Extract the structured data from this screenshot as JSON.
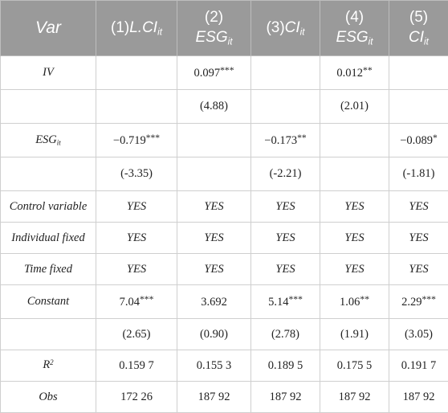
{
  "header": {
    "var": "Var",
    "col1": {
      "num": "(1)",
      "main": "L.CI",
      "sub": "it"
    },
    "col2": {
      "num": "(2)",
      "main": "ESG",
      "sub": "it"
    },
    "col3": {
      "num": "(3)",
      "main": "CI",
      "sub": "it"
    },
    "col4": {
      "num": "(4)",
      "main": "ESG",
      "sub": "it"
    },
    "col5": {
      "num": "(5)",
      "main": "CI",
      "sub": "it"
    }
  },
  "rows": {
    "iv": {
      "label": "IV",
      "c1": "",
      "c2": "0.097",
      "c2_stars": "***",
      "c3": "",
      "c4": "0.012",
      "c4_stars": "**",
      "c5": ""
    },
    "iv_t": {
      "c1": "",
      "c2": "(4.88)",
      "c3": "",
      "c4": "(2.01)",
      "c5": ""
    },
    "esg": {
      "label_main": "ESG",
      "label_sub": "it",
      "c1": "−0.719",
      "c1_stars": "***",
      "c2": "",
      "c3": "−0.173",
      "c3_stars": "**",
      "c4": "",
      "c5": "−0.089",
      "c5_stars": "*"
    },
    "esg_t": {
      "c1": "(-3.35)",
      "c2": "",
      "c3": "(-2.21)",
      "c4": "",
      "c5": "(-1.81)"
    },
    "control": {
      "label": "Control variable",
      "c1": "YES",
      "c2": "YES",
      "c3": "YES",
      "c4": "YES",
      "c5": "YES"
    },
    "individual": {
      "label": "Individual fixed",
      "c1": "YES",
      "c2": "YES",
      "c3": "YES",
      "c4": "YES",
      "c5": "YES"
    },
    "time": {
      "label": "Time fixed",
      "c1": "YES",
      "c2": "YES",
      "c3": "YES",
      "c4": "YES",
      "c5": "YES"
    },
    "constant": {
      "label": "Constant",
      "c1": "7.04",
      "c1_stars": "***",
      "c2": "3.692",
      "c2_stars": "",
      "c3": "5.14",
      "c3_stars": "***",
      "c4": "1.06",
      "c4_stars": "**",
      "c5": "2.29",
      "c5_stars": "***"
    },
    "constant_t": {
      "c1": "(2.65)",
      "c2": "(0.90)",
      "c3": "(2.78)",
      "c4": "(1.91)",
      "c5": "(3.05)"
    },
    "r2": {
      "label_main": "R",
      "label_sup": "2",
      "c1": "0.159 7",
      "c2": "0.155 3",
      "c3": "0.189 5",
      "c4": "0.175 5",
      "c5": "0.191 7"
    },
    "obs": {
      "label": "Obs",
      "c1": "172 26",
      "c2": "187 92",
      "c3": "187 92",
      "c4": "187 92",
      "c5": "187 92"
    }
  }
}
